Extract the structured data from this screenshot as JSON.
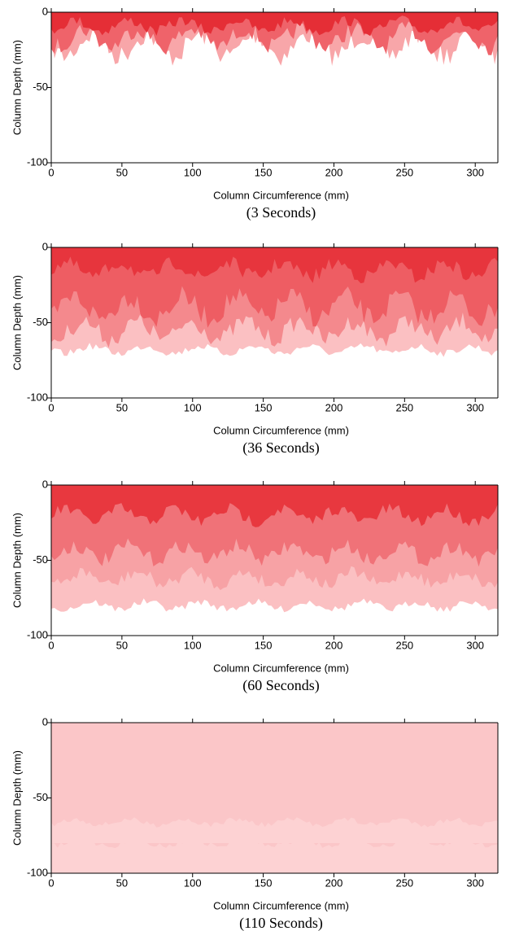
{
  "chart_data": [
    {
      "type": "contour",
      "caption": "(3 Seconds)",
      "xlabel": "Column Circumference (mm)",
      "ylabel": "Column Depth (mm)",
      "xlim": [
        0,
        316
      ],
      "ylim": [
        -100,
        0
      ],
      "xticks": [
        0,
        50,
        100,
        150,
        200,
        250,
        300
      ],
      "yticks": [
        -100,
        -50,
        0
      ]
    },
    {
      "type": "contour",
      "caption": "(36 Seconds)",
      "xlabel": "Column Circumference (mm)",
      "ylabel": "Column Depth (mm)",
      "xlim": [
        0,
        316
      ],
      "ylim": [
        -100,
        0
      ],
      "xticks": [
        0,
        50,
        100,
        150,
        200,
        250,
        300
      ],
      "yticks": [
        -100,
        -50,
        0
      ]
    },
    {
      "type": "contour",
      "caption": "(60 Seconds)",
      "xlabel": "Column Circumference (mm)",
      "ylabel": "Column Depth (mm)",
      "xlim": [
        0,
        316
      ],
      "ylim": [
        -100,
        0
      ],
      "xticks": [
        0,
        50,
        100,
        150,
        200,
        250,
        300
      ],
      "yticks": [
        -100,
        -50,
        0
      ]
    },
    {
      "type": "contour",
      "caption": "(110 Seconds)",
      "xlabel": "Column Circumference (mm)",
      "ylabel": "Column Depth (mm)",
      "xlim": [
        0,
        316
      ],
      "ylim": [
        -100,
        0
      ],
      "xticks": [
        0,
        50,
        100,
        150,
        200,
        250,
        300
      ],
      "yticks": [
        -100,
        -50,
        0
      ]
    }
  ]
}
